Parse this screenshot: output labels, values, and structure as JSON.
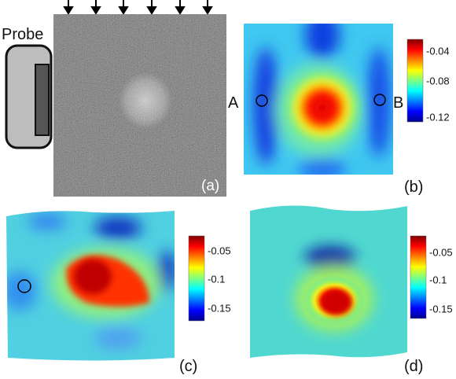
{
  "figure": {
    "probe_label": "Probe",
    "panels": [
      {
        "label": "(a)"
      },
      {
        "label": "(b)",
        "point_labels": [
          "A",
          "B"
        ],
        "colorbar_ticks": [
          "-0.04",
          "-0.08",
          "-0.12"
        ]
      },
      {
        "label": "(c)",
        "colorbar_ticks": [
          "-0.05",
          "-0.1",
          "-0.15"
        ]
      },
      {
        "label": "(d)",
        "colorbar_ticks": [
          "-0.05",
          "-0.1",
          "-0.15"
        ]
      }
    ]
  }
}
